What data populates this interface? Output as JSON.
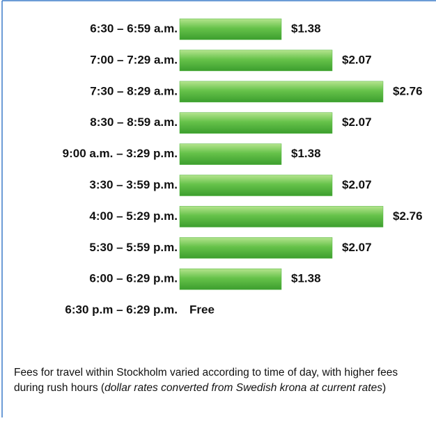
{
  "chart_data": {
    "type": "bar",
    "orientation": "horizontal",
    "categories": [
      "6:30 – 6:59 a.m.",
      "7:00 – 7:29 a.m.",
      "7:30 – 8:29 a.m.",
      "8:30 – 8:59 a.m.",
      "9:00 a.m. – 3:29 p.m.",
      "3:30 – 3:59 p.m.",
      "4:00 – 5:29 p.m.",
      "5:30 – 5:59 p.m.",
      "6:00 – 6:29 p.m.",
      "6:30 p.m – 6:29 p.m."
    ],
    "values": [
      1.38,
      2.07,
      2.76,
      2.07,
      1.38,
      2.07,
      2.76,
      2.07,
      1.38,
      0
    ],
    "value_labels": [
      "$1.38",
      "$2.07",
      "$2.76",
      "$2.07",
      "$1.38",
      "$2.07",
      "$2.76",
      "$2.07",
      "$1.38",
      "Free"
    ],
    "color": "#4fb33d",
    "caption": {
      "text": "Fees for travel within Stockholm varied according to time of day, with higher fees during rush hours (",
      "note": "dollar rates converted from Swedish krona at current rates",
      "end": ")"
    }
  }
}
